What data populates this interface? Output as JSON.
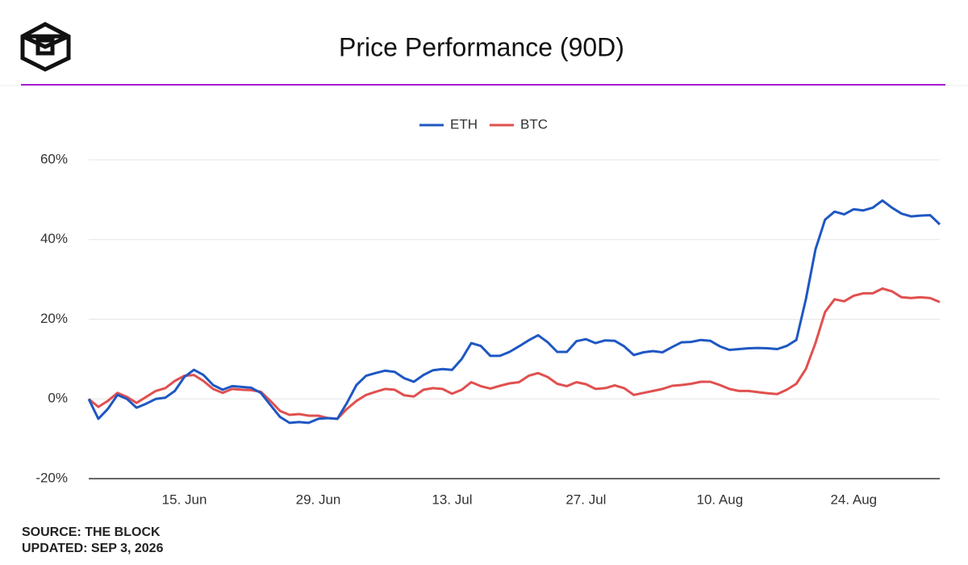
{
  "title": "Price Performance (90D)",
  "source": "SOURCE: THE BLOCK",
  "updated": "UPDATED: SEP 3, 2026",
  "chart_data": {
    "type": "line",
    "categories": [
      null,
      null,
      null,
      null,
      null,
      null,
      null,
      null,
      null,
      null,
      "15. Jun",
      null,
      null,
      null,
      null,
      null,
      null,
      null,
      null,
      null,
      null,
      null,
      null,
      null,
      "29. Jun",
      null,
      null,
      null,
      null,
      null,
      null,
      null,
      null,
      null,
      null,
      null,
      null,
      null,
      "13. Jul",
      null,
      null,
      null,
      null,
      null,
      null,
      null,
      null,
      null,
      null,
      null,
      null,
      null,
      "27. Jul",
      null,
      null,
      null,
      null,
      null,
      null,
      null,
      null,
      null,
      null,
      null,
      null,
      null,
      "10. Aug",
      null,
      null,
      null,
      null,
      null,
      null,
      null,
      null,
      null,
      null,
      null,
      null,
      null,
      "24. Aug",
      null,
      null,
      null,
      null,
      null,
      null,
      null,
      null,
      null
    ],
    "series": [
      {
        "name": "ETH",
        "color": "#1f57c3",
        "values": [
          0,
          -5,
          -2.5,
          1,
          0,
          -2.2,
          -1.2,
          0,
          0.3,
          2,
          5.5,
          7.3,
          6,
          3.5,
          2.3,
          3.2,
          3,
          2.8,
          1.5,
          -1.5,
          -4.5,
          -6,
          -5.8,
          -6,
          -5,
          -4.8,
          -5,
          -1,
          3.5,
          5.8,
          6.5,
          7.1,
          6.8,
          5.2,
          4.3,
          6,
          7.2,
          7.5,
          7.3,
          10,
          14,
          13.3,
          10.8,
          10.8,
          11.8,
          13.2,
          14.7,
          16,
          14.2,
          11.8,
          11.8,
          14.5,
          15,
          14,
          14.7,
          14.6,
          13.2,
          11,
          11.7,
          12,
          11.7,
          13,
          14.2,
          14.3,
          14.8,
          14.6,
          13.2,
          12.3,
          12.5,
          12.7,
          12.8,
          12.7,
          12.5,
          13.3,
          14.8,
          25,
          37.5,
          45,
          47,
          46.3,
          47.6,
          47.3,
          48,
          49.8,
          48,
          46.5,
          45.8,
          46,
          46.1,
          43.8
        ]
      },
      {
        "name": "BTC",
        "color": "#e0504f",
        "values": [
          0,
          -2,
          -0.5,
          1.5,
          0.5,
          -1,
          0.5,
          2,
          2.7,
          4.5,
          5.8,
          6,
          4.5,
          2.5,
          1.5,
          2.5,
          2.3,
          2.2,
          1.8,
          -0.5,
          -3,
          -4,
          -3.8,
          -4.2,
          -4.2,
          -4.8,
          -5,
          -2.5,
          -0.5,
          1,
          1.8,
          2.5,
          2.3,
          0.9,
          0.6,
          2.3,
          2.7,
          2.5,
          1.3,
          2.3,
          4.2,
          3.2,
          2.6,
          3.3,
          3.9,
          4.2,
          5.8,
          6.5,
          5.5,
          3.8,
          3.2,
          4.2,
          3.7,
          2.5,
          2.7,
          3.4,
          2.7,
          1,
          1.5,
          2,
          2.5,
          3.3,
          3.5,
          3.8,
          4.3,
          4.3,
          3.5,
          2.5,
          2,
          2,
          1.7,
          1.4,
          1.2,
          2.3,
          3.8,
          7.5,
          14,
          21.8,
          25,
          24.5,
          25.9,
          26.5,
          26.5,
          27.7,
          27,
          25.5,
          25.3,
          25.5,
          25.3,
          24.3
        ]
      }
    ],
    "ylim": [
      -20,
      60
    ],
    "yticks": [
      {
        "value": -20,
        "label": "-20%"
      },
      {
        "value": 0,
        "label": "0%"
      },
      {
        "value": 20,
        "label": "20%"
      },
      {
        "value": 40,
        "label": "40%"
      },
      {
        "value": 60,
        "label": "60%"
      }
    ],
    "grid": true,
    "legend": "top"
  }
}
